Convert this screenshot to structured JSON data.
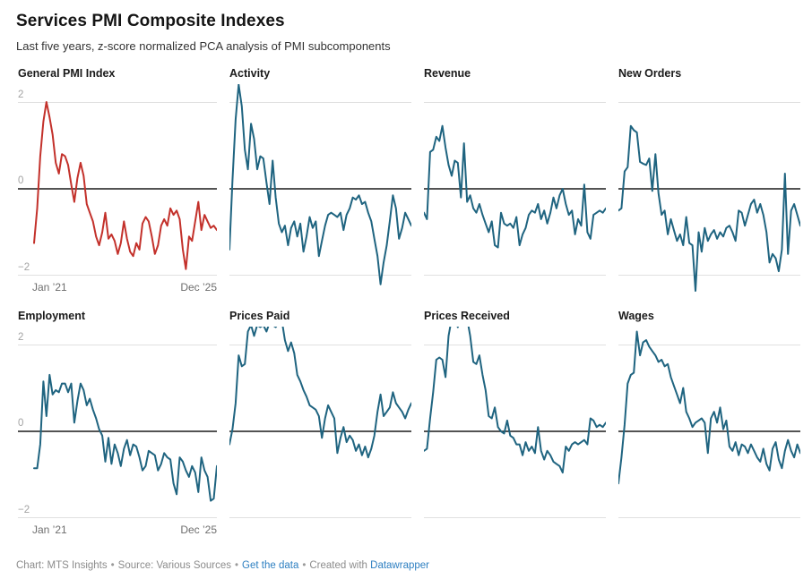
{
  "header": {
    "title": "Services PMI Composite Indexes",
    "subtitle": "Last five years, z-score normalized PCA analysis of PMI subcomponents"
  },
  "footer": {
    "credit": "Chart: MTS Insights",
    "source": "Source: Various Sources",
    "data_link": "Get the data",
    "created_with": "Created with",
    "tool_link": "Datawrapper",
    "separator": "•"
  },
  "style": {
    "red": "#c3312b",
    "teal": "#1f6480",
    "grid_color": "#e0e0e0",
    "zero_line_color": "#1a1a1a",
    "y_tick_color": "#a3a3a3",
    "x_label_color": "#6e6e6e",
    "footer_color": "#8c8c8c",
    "link_color": "#2d7fc1"
  },
  "axis": {
    "y_ticks": [
      "2",
      "0",
      "−2"
    ],
    "y_tick_values": [
      2,
      0,
      -2
    ],
    "x_start_label": "Jan ’21",
    "x_end_label": "Dec ’25",
    "frequency": "monthly",
    "points_per_series": 60
  },
  "chart_data": [
    {
      "type": "line",
      "title": "General PMI Index",
      "color": "#c3312b",
      "show_axis_labels": true,
      "x_range": [
        "Jan 2021",
        "Dec 2025"
      ],
      "ylim": [
        -2,
        2
      ],
      "values": [
        -1.25,
        -0.45,
        0.75,
        1.55,
        2.0,
        1.65,
        1.25,
        0.6,
        0.35,
        0.8,
        0.75,
        0.55,
        0.1,
        -0.3,
        0.25,
        0.6,
        0.3,
        -0.35,
        -0.55,
        -0.75,
        -1.1,
        -1.3,
        -1.0,
        -0.55,
        -1.15,
        -1.05,
        -1.2,
        -1.5,
        -1.25,
        -0.75,
        -1.15,
        -1.45,
        -1.55,
        -1.25,
        -1.4,
        -0.8,
        -0.65,
        -0.75,
        -1.1,
        -1.5,
        -1.3,
        -0.85,
        -0.7,
        -0.85,
        -0.45,
        -0.6,
        -0.5,
        -0.7,
        -1.4,
        -1.85,
        -1.1,
        -1.2,
        -0.75,
        -0.3,
        -0.95,
        -0.6,
        -0.75,
        -0.9,
        -0.85,
        -0.95
      ]
    },
    {
      "type": "line",
      "title": "Activity",
      "color": "#1f6480",
      "show_axis_labels": false,
      "x_range": [
        "Jan 2021",
        "Dec 2025"
      ],
      "ylim": [
        -2,
        2
      ],
      "values": [
        -1.4,
        0.2,
        1.6,
        2.4,
        1.9,
        0.9,
        0.45,
        1.5,
        1.15,
        0.45,
        0.75,
        0.7,
        0.15,
        -0.35,
        0.65,
        -0.2,
        -0.8,
        -1.0,
        -0.85,
        -1.3,
        -0.9,
        -0.75,
        -1.1,
        -0.8,
        -1.45,
        -1.1,
        -0.65,
        -0.9,
        -0.75,
        -1.55,
        -1.2,
        -0.85,
        -0.6,
        -0.55,
        -0.6,
        -0.65,
        -0.55,
        -0.95,
        -0.6,
        -0.45,
        -0.2,
        -0.25,
        -0.15,
        -0.35,
        -0.3,
        -0.55,
        -0.75,
        -1.15,
        -1.55,
        -2.2,
        -1.7,
        -1.3,
        -0.75,
        -0.15,
        -0.45,
        -1.15,
        -0.9,
        -0.55,
        -0.7,
        -0.85
      ]
    },
    {
      "type": "line",
      "title": "Revenue",
      "color": "#1f6480",
      "show_axis_labels": false,
      "x_range": [
        "Jan 2021",
        "Dec 2025"
      ],
      "ylim": [
        -2,
        2
      ],
      "values": [
        -0.55,
        -0.7,
        0.85,
        0.9,
        1.2,
        1.1,
        1.45,
        0.95,
        0.55,
        0.3,
        0.65,
        0.6,
        -0.2,
        1.05,
        -0.3,
        -0.15,
        -0.45,
        -0.55,
        -0.35,
        -0.6,
        -0.8,
        -1.0,
        -0.75,
        -1.3,
        -1.35,
        -0.55,
        -0.8,
        -0.85,
        -0.8,
        -0.9,
        -0.65,
        -1.3,
        -1.05,
        -0.9,
        -0.6,
        -0.5,
        -0.55,
        -0.35,
        -0.7,
        -0.5,
        -0.8,
        -0.55,
        -0.2,
        -0.45,
        -0.15,
        0.0,
        -0.35,
        -0.6,
        -0.5,
        -1.05,
        -0.7,
        -0.85,
        0.1,
        -1.0,
        -1.15,
        -0.6,
        -0.55,
        -0.5,
        -0.55,
        -0.45
      ]
    },
    {
      "type": "line",
      "title": "New Orders",
      "color": "#1f6480",
      "show_axis_labels": false,
      "x_range": [
        "Jan 2021",
        "Dec 2025"
      ],
      "ylim": [
        -2,
        2
      ],
      "values": [
        -0.5,
        -0.45,
        0.4,
        0.5,
        1.45,
        1.35,
        1.3,
        0.62,
        0.58,
        0.55,
        0.7,
        -0.05,
        0.8,
        -0.1,
        -0.6,
        -0.5,
        -1.05,
        -0.7,
        -0.95,
        -1.2,
        -1.05,
        -1.3,
        -0.65,
        -1.25,
        -1.3,
        -2.35,
        -1.0,
        -1.45,
        -0.9,
        -1.2,
        -1.05,
        -0.95,
        -1.15,
        -1.0,
        -1.1,
        -0.9,
        -0.85,
        -1.0,
        -1.2,
        -0.5,
        -0.55,
        -0.85,
        -0.6,
        -0.35,
        -0.25,
        -0.55,
        -0.35,
        -0.6,
        -1.0,
        -1.7,
        -1.5,
        -1.6,
        -1.9,
        -1.4,
        0.35,
        -1.5,
        -0.5,
        -0.35,
        -0.6,
        -0.85
      ]
    },
    {
      "type": "line",
      "title": "Employment",
      "color": "#1f6480",
      "show_axis_labels": true,
      "x_range": [
        "Jan 2021",
        "Dec 2025"
      ],
      "ylim": [
        -2,
        2
      ],
      "values": [
        -0.85,
        -0.85,
        -0.3,
        1.15,
        0.35,
        1.3,
        0.85,
        0.95,
        0.9,
        1.1,
        1.1,
        0.9,
        1.1,
        0.2,
        0.7,
        1.1,
        0.95,
        0.6,
        0.75,
        0.5,
        0.3,
        0.05,
        -0.1,
        -0.7,
        -0.15,
        -0.75,
        -0.3,
        -0.5,
        -0.8,
        -0.4,
        -0.2,
        -0.55,
        -0.3,
        -0.35,
        -0.6,
        -0.9,
        -0.8,
        -0.45,
        -0.5,
        -0.55,
        -0.9,
        -0.75,
        -0.5,
        -0.6,
        -0.65,
        -1.2,
        -1.45,
        -0.6,
        -0.7,
        -0.9,
        -1.05,
        -0.8,
        -0.95,
        -1.4,
        -0.6,
        -0.9,
        -1.05,
        -1.6,
        -1.55,
        -0.8
      ]
    },
    {
      "type": "line",
      "title": "Prices Paid",
      "color": "#1f6480",
      "show_axis_labels": false,
      "x_range": [
        "Jan 2021",
        "Dec 2025"
      ],
      "ylim": [
        -2,
        2
      ],
      "values": [
        -0.3,
        0.05,
        0.65,
        1.75,
        1.5,
        1.55,
        2.3,
        2.45,
        2.2,
        2.45,
        2.4,
        2.45,
        2.3,
        2.5,
        2.45,
        2.4,
        2.5,
        2.55,
        2.1,
        1.85,
        2.05,
        1.8,
        1.3,
        1.15,
        0.95,
        0.8,
        0.6,
        0.55,
        0.5,
        0.35,
        -0.15,
        0.3,
        0.6,
        0.45,
        0.3,
        -0.5,
        -0.15,
        0.1,
        -0.25,
        -0.1,
        -0.2,
        -0.45,
        -0.3,
        -0.55,
        -0.35,
        -0.6,
        -0.4,
        -0.1,
        0.45,
        0.85,
        0.35,
        0.45,
        0.55,
        0.9,
        0.65,
        0.55,
        0.45,
        0.3,
        0.5,
        0.65
      ]
    },
    {
      "type": "line",
      "title": "Prices Received",
      "color": "#1f6480",
      "show_axis_labels": false,
      "x_range": [
        "Jan 2021",
        "Dec 2025"
      ],
      "ylim": [
        -2,
        2
      ],
      "values": [
        -0.45,
        -0.4,
        0.3,
        0.9,
        1.65,
        1.7,
        1.65,
        1.25,
        2.2,
        2.6,
        2.7,
        2.4,
        2.7,
        2.75,
        2.6,
        2.2,
        1.6,
        1.55,
        1.75,
        1.3,
        0.95,
        0.35,
        0.3,
        0.55,
        0.1,
        0.0,
        -0.05,
        0.25,
        -0.1,
        -0.15,
        -0.3,
        -0.3,
        -0.55,
        -0.25,
        -0.45,
        -0.35,
        -0.5,
        0.1,
        -0.45,
        -0.65,
        -0.45,
        -0.55,
        -0.7,
        -0.75,
        -0.8,
        -0.95,
        -0.35,
        -0.45,
        -0.3,
        -0.25,
        -0.3,
        -0.25,
        -0.2,
        -0.3,
        0.3,
        0.25,
        0.1,
        0.15,
        0.1,
        0.2
      ]
    },
    {
      "type": "line",
      "title": "Wages",
      "color": "#1f6480",
      "show_axis_labels": false,
      "x_range": [
        "Jan 2021",
        "Dec 2025"
      ],
      "ylim": [
        -2,
        2
      ],
      "values": [
        -1.2,
        -0.6,
        0.15,
        1.1,
        1.3,
        1.35,
        2.3,
        1.75,
        2.05,
        2.1,
        1.95,
        1.85,
        1.75,
        1.6,
        1.65,
        1.5,
        1.55,
        1.25,
        1.05,
        0.85,
        0.65,
        1.0,
        0.45,
        0.3,
        0.1,
        0.2,
        0.25,
        0.3,
        0.2,
        -0.5,
        0.3,
        0.45,
        0.2,
        0.55,
        0.05,
        0.25,
        -0.35,
        -0.45,
        -0.25,
        -0.55,
        -0.3,
        -0.35,
        -0.5,
        -0.3,
        -0.45,
        -0.6,
        -0.7,
        -0.4,
        -0.75,
        -0.9,
        -0.4,
        -0.25,
        -0.65,
        -0.85,
        -0.45,
        -0.2,
        -0.45,
        -0.6,
        -0.3,
        -0.5
      ]
    }
  ]
}
